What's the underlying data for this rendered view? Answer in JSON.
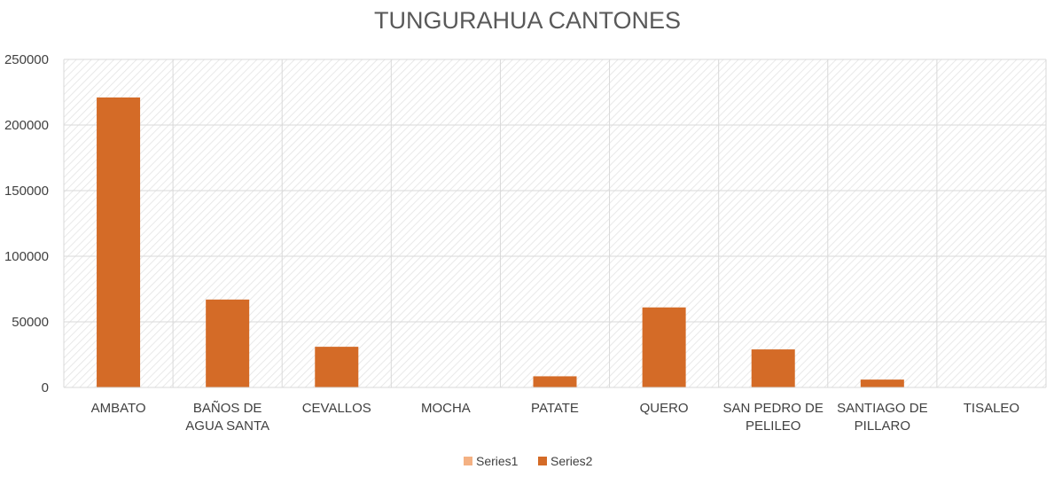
{
  "chart_data": {
    "type": "bar",
    "title": "TUNGURAHUA CANTONES",
    "categories": [
      [
        "AMBATO"
      ],
      [
        "BAÑOS DE",
        "AGUA SANTA"
      ],
      [
        "CEVALLOS"
      ],
      [
        "MOCHA"
      ],
      [
        "PATATE"
      ],
      [
        "QUERO"
      ],
      [
        "SAN PEDRO DE",
        "PELILEO"
      ],
      [
        "SANTIAGO DE",
        "PILLARO"
      ],
      [
        "TISALEO"
      ]
    ],
    "series": [
      {
        "name": "Series1",
        "color": "#F4B183",
        "values": [
          0,
          0,
          0,
          0,
          0,
          0,
          0,
          0,
          0
        ]
      },
      {
        "name": "Series2",
        "color": "#D46B27",
        "values": [
          221000,
          67000,
          31000,
          0,
          8500,
          61000,
          29000,
          6000,
          0
        ]
      }
    ],
    "yticks": [
      "0",
      "50000",
      "100000",
      "150000",
      "200000",
      "250000"
    ],
    "ylim": [
      0,
      250000
    ],
    "grid": true,
    "legend_position": "bottom"
  }
}
